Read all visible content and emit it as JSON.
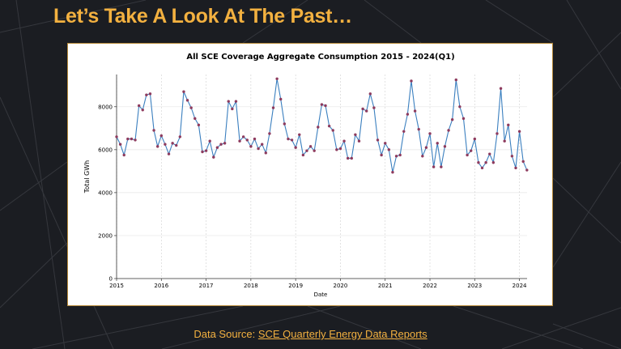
{
  "slide": {
    "title": "Let’s Take A Look At The Past…"
  },
  "footer": {
    "prefix": "Data Source: ",
    "link_text": "SCE Quarterly Energy Data Reports"
  },
  "colors": {
    "title": "#f3b140",
    "background": "#1b1d22",
    "line": "#3a7fbf",
    "marker": "#8e3b5e"
  },
  "chart_data": {
    "type": "line",
    "title": "All SCE Coverage Aggregate Consumption 2015 - 2024(Q1)",
    "xlabel": "Date",
    "ylabel": "Total GWh",
    "xlim": [
      2015.0,
      2024.17
    ],
    "ylim": [
      0,
      9500
    ],
    "grid": true,
    "x_ticks": [
      "2015",
      "2016",
      "2017",
      "2018",
      "2019",
      "2020",
      "2021",
      "2022",
      "2023",
      "2024"
    ],
    "y_ticks": [
      "0",
      "2000",
      "4000",
      "6000",
      "8000"
    ],
    "series": [
      {
        "x": [
          "2015-01",
          "2015-02",
          "2015-03",
          "2015-04",
          "2015-05",
          "2015-06",
          "2015-07",
          "2015-08",
          "2015-09",
          "2015-10",
          "2015-11",
          "2015-12",
          "2016-01",
          "2016-02",
          "2016-03",
          "2016-04",
          "2016-05",
          "2016-06",
          "2016-07",
          "2016-08",
          "2016-09",
          "2016-10",
          "2016-11",
          "2016-12",
          "2017-01",
          "2017-02",
          "2017-03",
          "2017-04",
          "2017-05",
          "2017-06",
          "2017-07",
          "2017-08",
          "2017-09",
          "2017-10",
          "2017-11",
          "2017-12",
          "2018-01",
          "2018-02",
          "2018-03",
          "2018-04",
          "2018-05",
          "2018-06",
          "2018-07",
          "2018-08",
          "2018-09",
          "2018-10",
          "2018-11",
          "2018-12",
          "2019-01",
          "2019-02",
          "2019-03",
          "2019-04",
          "2019-05",
          "2019-06",
          "2019-07",
          "2019-08",
          "2019-09",
          "2019-10",
          "2019-11",
          "2019-12",
          "2020-01",
          "2020-02",
          "2020-03",
          "2020-04",
          "2020-05",
          "2020-06",
          "2020-07",
          "2020-08",
          "2020-09",
          "2020-10",
          "2020-11",
          "2020-12",
          "2021-01",
          "2021-02",
          "2021-03",
          "2021-04",
          "2021-05",
          "2021-06",
          "2021-07",
          "2021-08",
          "2021-09",
          "2021-10",
          "2021-11",
          "2021-12",
          "2022-01",
          "2022-02",
          "2022-03",
          "2022-04",
          "2022-05",
          "2022-06",
          "2022-07",
          "2022-08",
          "2022-09",
          "2022-10",
          "2022-11",
          "2022-12",
          "2023-01",
          "2023-02",
          "2023-03",
          "2023-04",
          "2023-05",
          "2023-06",
          "2023-07",
          "2023-08",
          "2023-09",
          "2023-10",
          "2023-11",
          "2023-12",
          "2024-01",
          "2024-02",
          "2024-03"
        ],
        "values": [
          6600,
          6250,
          5750,
          6500,
          6500,
          6450,
          8050,
          7850,
          8550,
          8600,
          6900,
          6150,
          6650,
          6250,
          5800,
          6300,
          6200,
          6600,
          8700,
          8300,
          7950,
          7450,
          7150,
          5900,
          5950,
          6400,
          5650,
          6100,
          6250,
          6300,
          8250,
          7900,
          8250,
          6400,
          6600,
          6450,
          6150,
          6500,
          6050,
          6250,
          5850,
          6750,
          7950,
          9300,
          8350,
          7200,
          6500,
          6450,
          6100,
          6700,
          5750,
          5950,
          6150,
          5950,
          7050,
          8100,
          8050,
          7100,
          6900,
          6000,
          6050,
          6400,
          5600,
          5600,
          6700,
          6400,
          7900,
          7800,
          8600,
          7950,
          6450,
          5750,
          6300,
          6000,
          4950,
          5700,
          5750,
          6850,
          7650,
          9200,
          7800,
          6950,
          5700,
          6100,
          6750,
          5200,
          6300,
          5200,
          6150,
          6900,
          7400,
          9250,
          8000,
          7450,
          5750,
          5950,
          6500,
          5400,
          5150,
          5400,
          5800,
          5400,
          6750,
          8850,
          6400,
          7150,
          5700,
          5150,
          6850,
          5450,
          5050
        ]
      }
    ]
  }
}
